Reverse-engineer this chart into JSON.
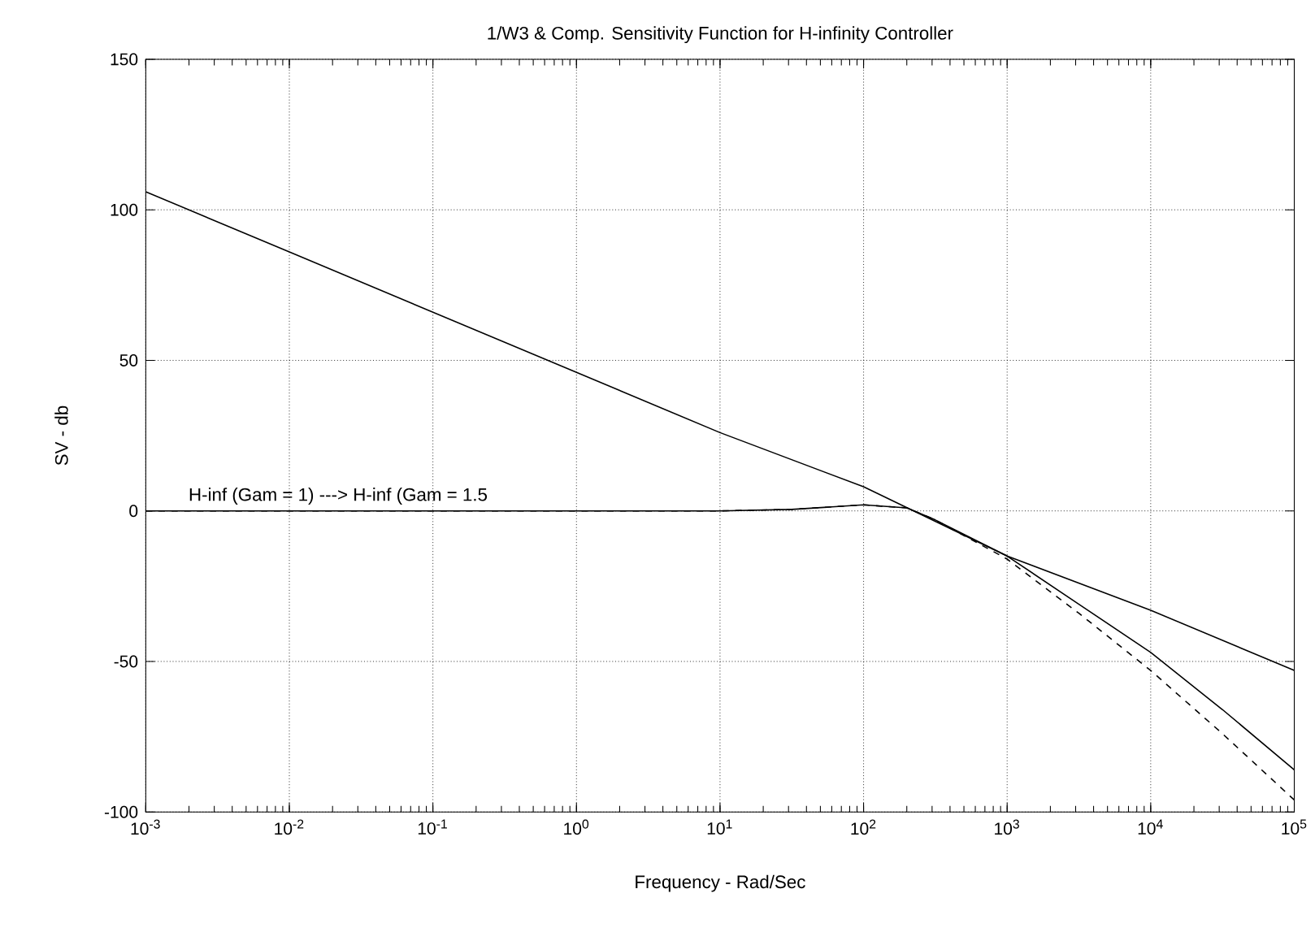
{
  "chart_data": {
    "type": "line",
    "title": "1/W3 & Comp. Sensitivity Function for H-infinity Controller",
    "xlabel": "Frequency - Rad/Sec",
    "ylabel": "SV - db",
    "log": "x",
    "xlim": [
      0.001,
      100000
    ],
    "ylim": [
      -100,
      150
    ],
    "xticks": [
      {
        "value": 0.001,
        "label": "10$^{-3}$"
      },
      {
        "value": 0.01,
        "label": "10$^{-2}$"
      },
      {
        "value": 0.1,
        "label": "10$^{-1}$"
      },
      {
        "value": 1,
        "label": "10$^{0}$"
      },
      {
        "value": 10,
        "label": "10$^{1}$"
      },
      {
        "value": 100,
        "label": "10$^{2}$"
      },
      {
        "value": 1000,
        "label": "10$^{3}$"
      },
      {
        "value": 10000,
        "label": "10$^{4}$"
      },
      {
        "value": 100000,
        "label": "10$^{5}$"
      }
    ],
    "yticks": [
      -100,
      -50,
      0,
      50,
      100,
      150
    ],
    "grid": true,
    "annotations": [
      "H-inf (Gam = 1) ---> H-inf (Gam = 1.5"
    ],
    "series": [
      {
        "color": "#000000",
        "line_style": "solid",
        "x": [
          0.001,
          0.01,
          0.1,
          1,
          10,
          100,
          1000,
          10000,
          100000
        ],
        "values": [
          106,
          86,
          66,
          46,
          26,
          8,
          -15,
          -33,
          -53
        ]
      },
      {
        "color": "#000000",
        "line_style": "solid",
        "x": [
          0.001,
          0.1,
          10,
          31.6,
          100,
          200,
          316,
          1000,
          3162,
          10000,
          31623,
          100000
        ],
        "values": [
          0,
          0,
          0,
          0.5,
          2,
          1,
          -3,
          -15,
          -31,
          -47,
          -66,
          -86
        ]
      },
      {
        "color": "#000000",
        "line_style": "dashed",
        "x": [
          0.001,
          0.1,
          10,
          31.6,
          100,
          200,
          316,
          1000,
          3162,
          10000,
          31623,
          100000
        ],
        "values": [
          0,
          0,
          0,
          0.5,
          2,
          1,
          -3,
          -16,
          -34,
          -53,
          -74,
          -96
        ]
      }
    ]
  }
}
